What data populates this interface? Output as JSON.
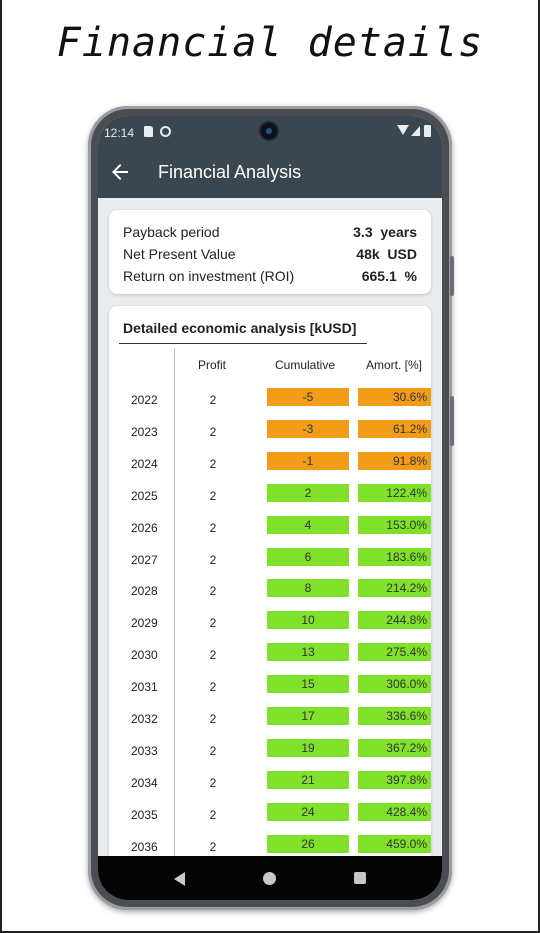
{
  "headline": "Financial details",
  "status": {
    "time": "12:14"
  },
  "appbar": {
    "title": "Financial Analysis"
  },
  "summary": [
    {
      "label": "Payback period",
      "value": "3.3  years"
    },
    {
      "label": "Net Present Value",
      "value": "48k  USD"
    },
    {
      "label": "Return on investment (ROI)",
      "value": "665.1  %"
    }
  ],
  "analysis": {
    "title": "Detailed economic analysis [kUSD]",
    "headers": {
      "profit": "Profit",
      "cumulative": "Cumulative",
      "amort": "Amort. [%]"
    },
    "rows": [
      {
        "year": "2022",
        "profit": "2",
        "cumulative": "-5",
        "amort": "30.6%"
      },
      {
        "year": "2023",
        "profit": "2",
        "cumulative": "-3",
        "amort": "61.2%"
      },
      {
        "year": "2024",
        "profit": "2",
        "cumulative": "-1",
        "amort": "91.8%"
      },
      {
        "year": "2025",
        "profit": "2",
        "cumulative": "2",
        "amort": "122.4%"
      },
      {
        "year": "2026",
        "profit": "2",
        "cumulative": "4",
        "amort": "153.0%"
      },
      {
        "year": "2027",
        "profit": "2",
        "cumulative": "6",
        "amort": "183.6%"
      },
      {
        "year": "2028",
        "profit": "2",
        "cumulative": "8",
        "amort": "214.2%"
      },
      {
        "year": "2029",
        "profit": "2",
        "cumulative": "10",
        "amort": "244.8%"
      },
      {
        "year": "2030",
        "profit": "2",
        "cumulative": "13",
        "amort": "275.4%"
      },
      {
        "year": "2031",
        "profit": "2",
        "cumulative": "15",
        "amort": "306.0%"
      },
      {
        "year": "2032",
        "profit": "2",
        "cumulative": "17",
        "amort": "336.6%"
      },
      {
        "year": "2033",
        "profit": "2",
        "cumulative": "19",
        "amort": "367.2%"
      },
      {
        "year": "2034",
        "profit": "2",
        "cumulative": "21",
        "amort": "397.8%"
      },
      {
        "year": "2035",
        "profit": "2",
        "cumulative": "24",
        "amort": "428.4%"
      },
      {
        "year": "2036",
        "profit": "2",
        "cumulative": "26",
        "amort": "459.0%"
      }
    ]
  },
  "colors": {
    "negative": "#f39c18",
    "positive": "#7fe12a",
    "appbar": "#3b4750"
  },
  "icons": {
    "back": "arrow-left-icon",
    "nav_back": "triangle-back-icon",
    "nav_home": "circle-home-icon",
    "nav_recent": "square-recent-icon"
  }
}
